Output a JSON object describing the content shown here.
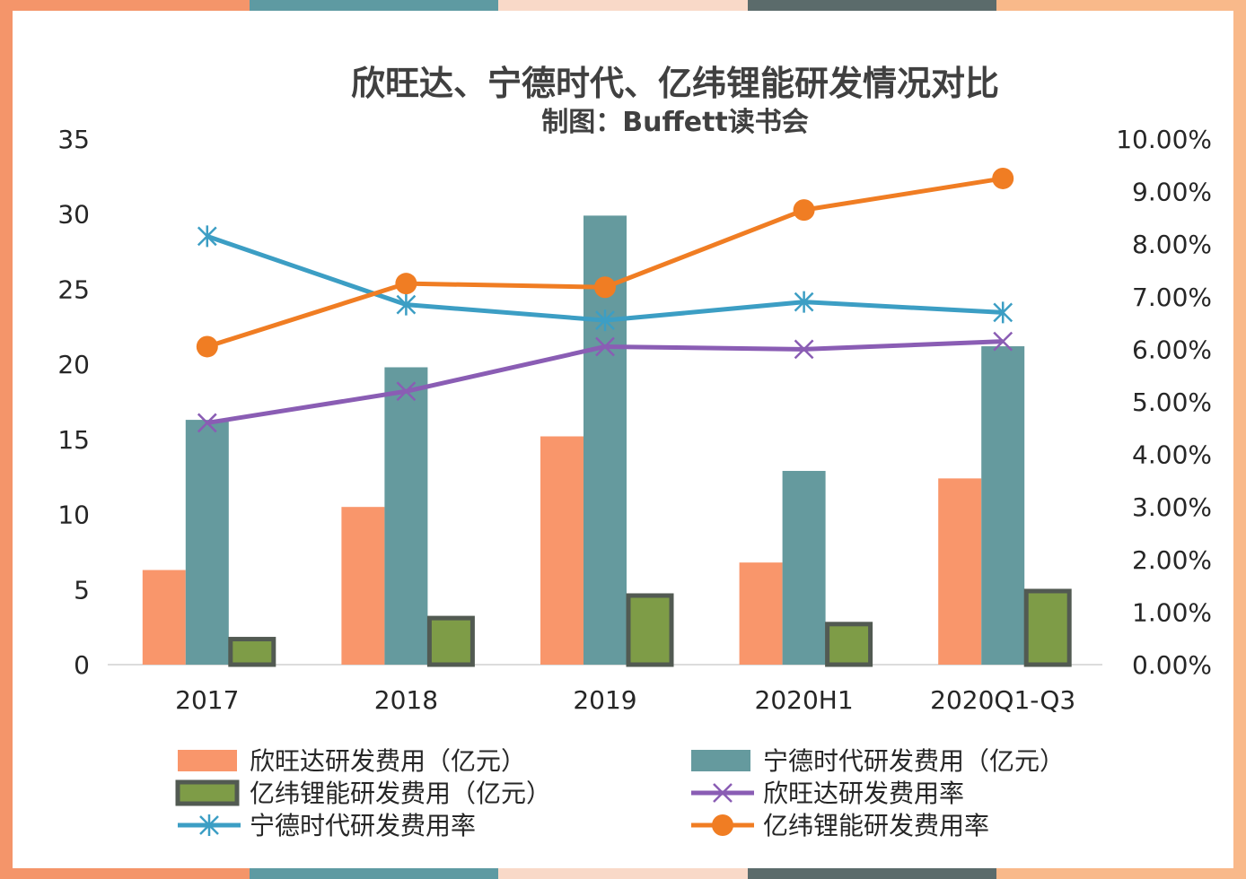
{
  "frame_colors": [
    "#f4956a",
    "#5e9aa2",
    "#f9d9c8",
    "#5b6b6b",
    "#f9b98a"
  ],
  "chart_data": {
    "type": "bar",
    "title": "欣旺达、宁德时代、亿纬锂能研发情况对比",
    "subtitle": "制图：Buffett读书会",
    "categories": [
      "2017",
      "2018",
      "2019",
      "2020H1",
      "2020Q1-Q3"
    ],
    "y_left": {
      "min": 0,
      "max": 35,
      "ticks": [
        0,
        5,
        10,
        15,
        20,
        25,
        30,
        35
      ]
    },
    "y_right": {
      "min": 0,
      "max": 0.1,
      "ticks": [
        0,
        0.01,
        0.02,
        0.03,
        0.04,
        0.05,
        0.06,
        0.07,
        0.08,
        0.09,
        0.1
      ],
      "tick_labels": [
        "0.00%",
        "1.00%",
        "2.00%",
        "3.00%",
        "4.00%",
        "5.00%",
        "6.00%",
        "7.00%",
        "8.00%",
        "9.00%",
        "10.00%"
      ]
    },
    "bar_series": [
      {
        "name": "欣旺达研发费用（亿元）",
        "color": "#f9966b",
        "values": [
          6.3,
          10.5,
          15.2,
          6.8,
          12.4
        ]
      },
      {
        "name": "宁德时代研发费用（亿元）",
        "color": "#659a9e",
        "values": [
          16.3,
          19.8,
          29.9,
          12.9,
          21.2
        ]
      },
      {
        "name": "亿纬锂能研发费用（亿元）",
        "color": "#7e9c47",
        "border": "#525a52",
        "values": [
          1.7,
          3.1,
          4.6,
          2.7,
          4.9
        ]
      }
    ],
    "line_series": [
      {
        "name": "欣旺达研发费用率",
        "color": "#8a5db4",
        "marker": "x",
        "values": [
          0.046,
          0.052,
          0.0605,
          0.06,
          0.0615
        ]
      },
      {
        "name": "宁德时代研发费用率",
        "color": "#3c9ec4",
        "marker": "asterisk",
        "values": [
          0.0815,
          0.0685,
          0.0655,
          0.069,
          0.067
        ]
      },
      {
        "name": "亿纬锂能研发费用率",
        "color": "#f07d23",
        "marker": "circle",
        "values": [
          0.0605,
          0.0725,
          0.0718,
          0.0865,
          0.0925
        ]
      }
    ],
    "legend": {
      "position": "bottom",
      "items": [
        "欣旺达研发费用（亿元）",
        "宁德时代研发费用（亿元）",
        "亿纬锂能研发费用（亿元）",
        "欣旺达研发费用率",
        "宁德时代研发费用率",
        "亿纬锂能研发费用率"
      ]
    },
    "grid": false
  }
}
